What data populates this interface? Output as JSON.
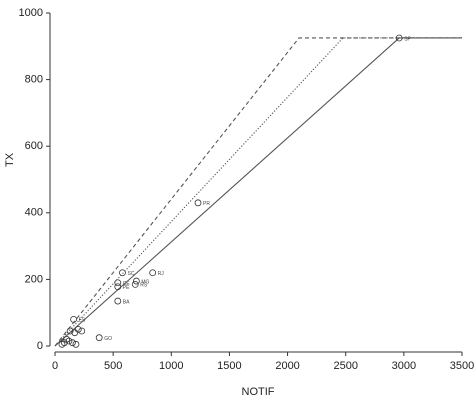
{
  "chart_data": {
    "type": "scatter",
    "x_label": "NOTIF",
    "y_label": "TX",
    "xlim": [
      0,
      3500
    ],
    "ylim": [
      0,
      1000
    ],
    "xticks": [
      0,
      500,
      1000,
      1500,
      2000,
      2500,
      3000,
      3500
    ],
    "yticks": [
      0,
      200,
      400,
      600,
      800,
      1000
    ],
    "points": {
      "x": [
        2960,
        1230,
        840,
        580,
        700,
        690,
        540,
        540,
        540,
        380,
        160,
        130,
        170,
        200,
        230,
        100,
        80,
        60,
        120,
        150,
        180
      ],
      "y": [
        925,
        430,
        220,
        220,
        195,
        185,
        190,
        178,
        135,
        25,
        80,
        45,
        40,
        50,
        45,
        20,
        10,
        5,
        15,
        10,
        5
      ],
      "labels": [
        "SP",
        "PR",
        "RJ",
        "SC",
        "MG",
        "RS",
        "CE",
        "PE",
        "BA",
        "GO",
        "ES",
        null,
        null,
        null,
        null,
        null,
        null,
        null,
        null,
        null,
        null
      ]
    },
    "lines": [
      {
        "style": "solid",
        "color": "#555555",
        "x": [
          0,
          2960,
          3500
        ],
        "y": [
          0,
          925,
          925
        ]
      },
      {
        "style": "dotted",
        "color": "#555555",
        "x": [
          0,
          2476,
          3500
        ],
        "y": [
          0,
          925,
          925
        ]
      },
      {
        "style": "dashed",
        "color": "#555555",
        "x": [
          0,
          2098,
          3500
        ],
        "y": [
          0,
          925,
          925
        ]
      }
    ]
  }
}
